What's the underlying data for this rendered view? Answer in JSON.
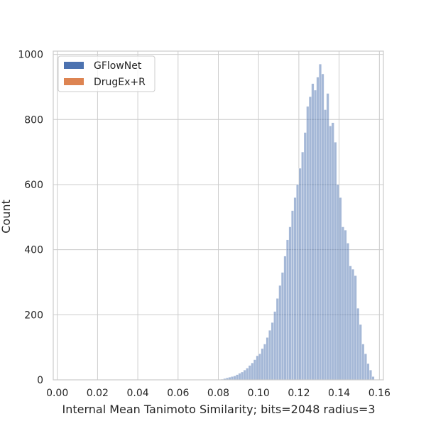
{
  "chart_data": {
    "type": "histogram",
    "title": "",
    "xlabel": "Internal Mean Tanimoto Similarity; bits=2048 radius=3",
    "ylabel": "Count",
    "xlim": [
      -0.002,
      0.162
    ],
    "ylim": [
      0,
      1010
    ],
    "x_ticks": [
      0.0,
      0.02,
      0.04,
      0.06,
      0.08,
      0.1,
      0.12,
      0.14,
      0.16
    ],
    "x_tick_labels": [
      "0.00",
      "0.02",
      "0.04",
      "0.06",
      "0.08",
      "0.10",
      "0.12",
      "0.14",
      "0.16"
    ],
    "y_ticks": [
      0,
      200,
      400,
      600,
      800,
      1000
    ],
    "y_tick_labels": [
      "0",
      "200",
      "400",
      "600",
      "800",
      "1000"
    ],
    "grid": true,
    "legend_position": "top-left",
    "bin_start": 0.0,
    "bin_width": 0.00125,
    "series": [
      {
        "name": "GFlowNet",
        "color": "#4c72b0",
        "values": [
          0,
          0,
          0,
          0,
          0,
          0,
          0,
          0,
          0,
          0,
          0,
          0,
          0,
          0,
          0,
          0,
          0,
          0,
          0,
          0,
          0,
          0,
          0,
          0,
          0,
          0,
          0,
          0,
          0,
          0,
          0,
          0,
          0,
          0,
          0,
          0,
          0,
          0,
          0,
          0,
          0,
          0,
          0,
          0,
          0,
          0,
          0,
          0,
          0,
          0,
          0,
          0,
          0,
          0,
          0,
          0,
          0,
          0,
          0,
          0,
          0,
          0,
          0,
          0,
          0,
          2,
          4,
          6,
          8,
          10,
          12,
          16,
          20,
          24,
          30,
          36,
          44,
          52,
          62,
          74,
          80,
          96,
          110,
          130,
          152,
          176,
          210,
          250,
          290,
          330,
          380,
          430,
          470,
          520,
          560,
          600,
          650,
          700,
          760,
          840,
          870,
          910,
          890,
          930,
          970,
          940,
          830,
          880,
          780,
          790,
          730,
          600,
          560,
          470,
          460,
          420,
          350,
          340,
          320,
          220,
          170,
          110,
          80,
          50,
          30,
          10,
          0,
          0,
          0,
          0
        ]
      },
      {
        "name": "DrugEx+R",
        "color": "#dd8452",
        "values": [
          0,
          0,
          0,
          0,
          0,
          0,
          0,
          0,
          0,
          0,
          0,
          0,
          0,
          0,
          0,
          0,
          0,
          0,
          0,
          0,
          0,
          0,
          0,
          0,
          0,
          0,
          0,
          0,
          0,
          0,
          0,
          0,
          0,
          0,
          0,
          0,
          0,
          0,
          0,
          0,
          0,
          0,
          0,
          0,
          0,
          0,
          0,
          0,
          0,
          0,
          0,
          0,
          0,
          0,
          0,
          0,
          0,
          0,
          0,
          0,
          0,
          0,
          0,
          0,
          0,
          0,
          0,
          0,
          0,
          0,
          0,
          0,
          0,
          0,
          0,
          0,
          0,
          0,
          0,
          0,
          0,
          0,
          0,
          0,
          0,
          0,
          0,
          0,
          0,
          0,
          0,
          0,
          0,
          0,
          0,
          0,
          0,
          0,
          0,
          0,
          0,
          0,
          0,
          0,
          0,
          0,
          0,
          0,
          0,
          0,
          0,
          0,
          0,
          0,
          0,
          0,
          0,
          0,
          0,
          0,
          0,
          0,
          0,
          0,
          0,
          0,
          0,
          0,
          0,
          0
        ]
      }
    ]
  }
}
